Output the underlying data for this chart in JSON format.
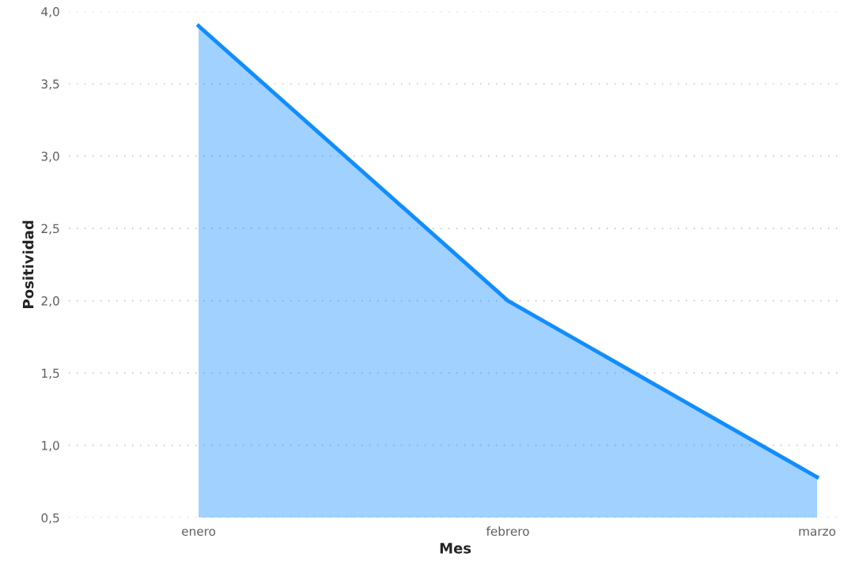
{
  "chart_data": {
    "type": "area",
    "xlabel": "Mes",
    "ylabel": "Positividad",
    "categories": [
      "enero",
      "febrero",
      "marzo"
    ],
    "series": [
      {
        "color": "#118dff",
        "values": [
          3.9,
          2.0,
          0.78
        ]
      }
    ],
    "ylim": [
      0.5,
      4.0
    ],
    "yticks": [
      {
        "value": 0.5,
        "label": "0,5"
      },
      {
        "value": 1.0,
        "label": "1,0"
      },
      {
        "value": 1.5,
        "label": "1,5"
      },
      {
        "value": 2.0,
        "label": "2,0"
      },
      {
        "value": 2.5,
        "label": "2,5"
      },
      {
        "value": 3.0,
        "label": "3,0"
      },
      {
        "value": 3.5,
        "label": "3,5"
      },
      {
        "value": 4.0,
        "label": "4,0"
      }
    ],
    "grid": "y",
    "line_style": "solid"
  }
}
